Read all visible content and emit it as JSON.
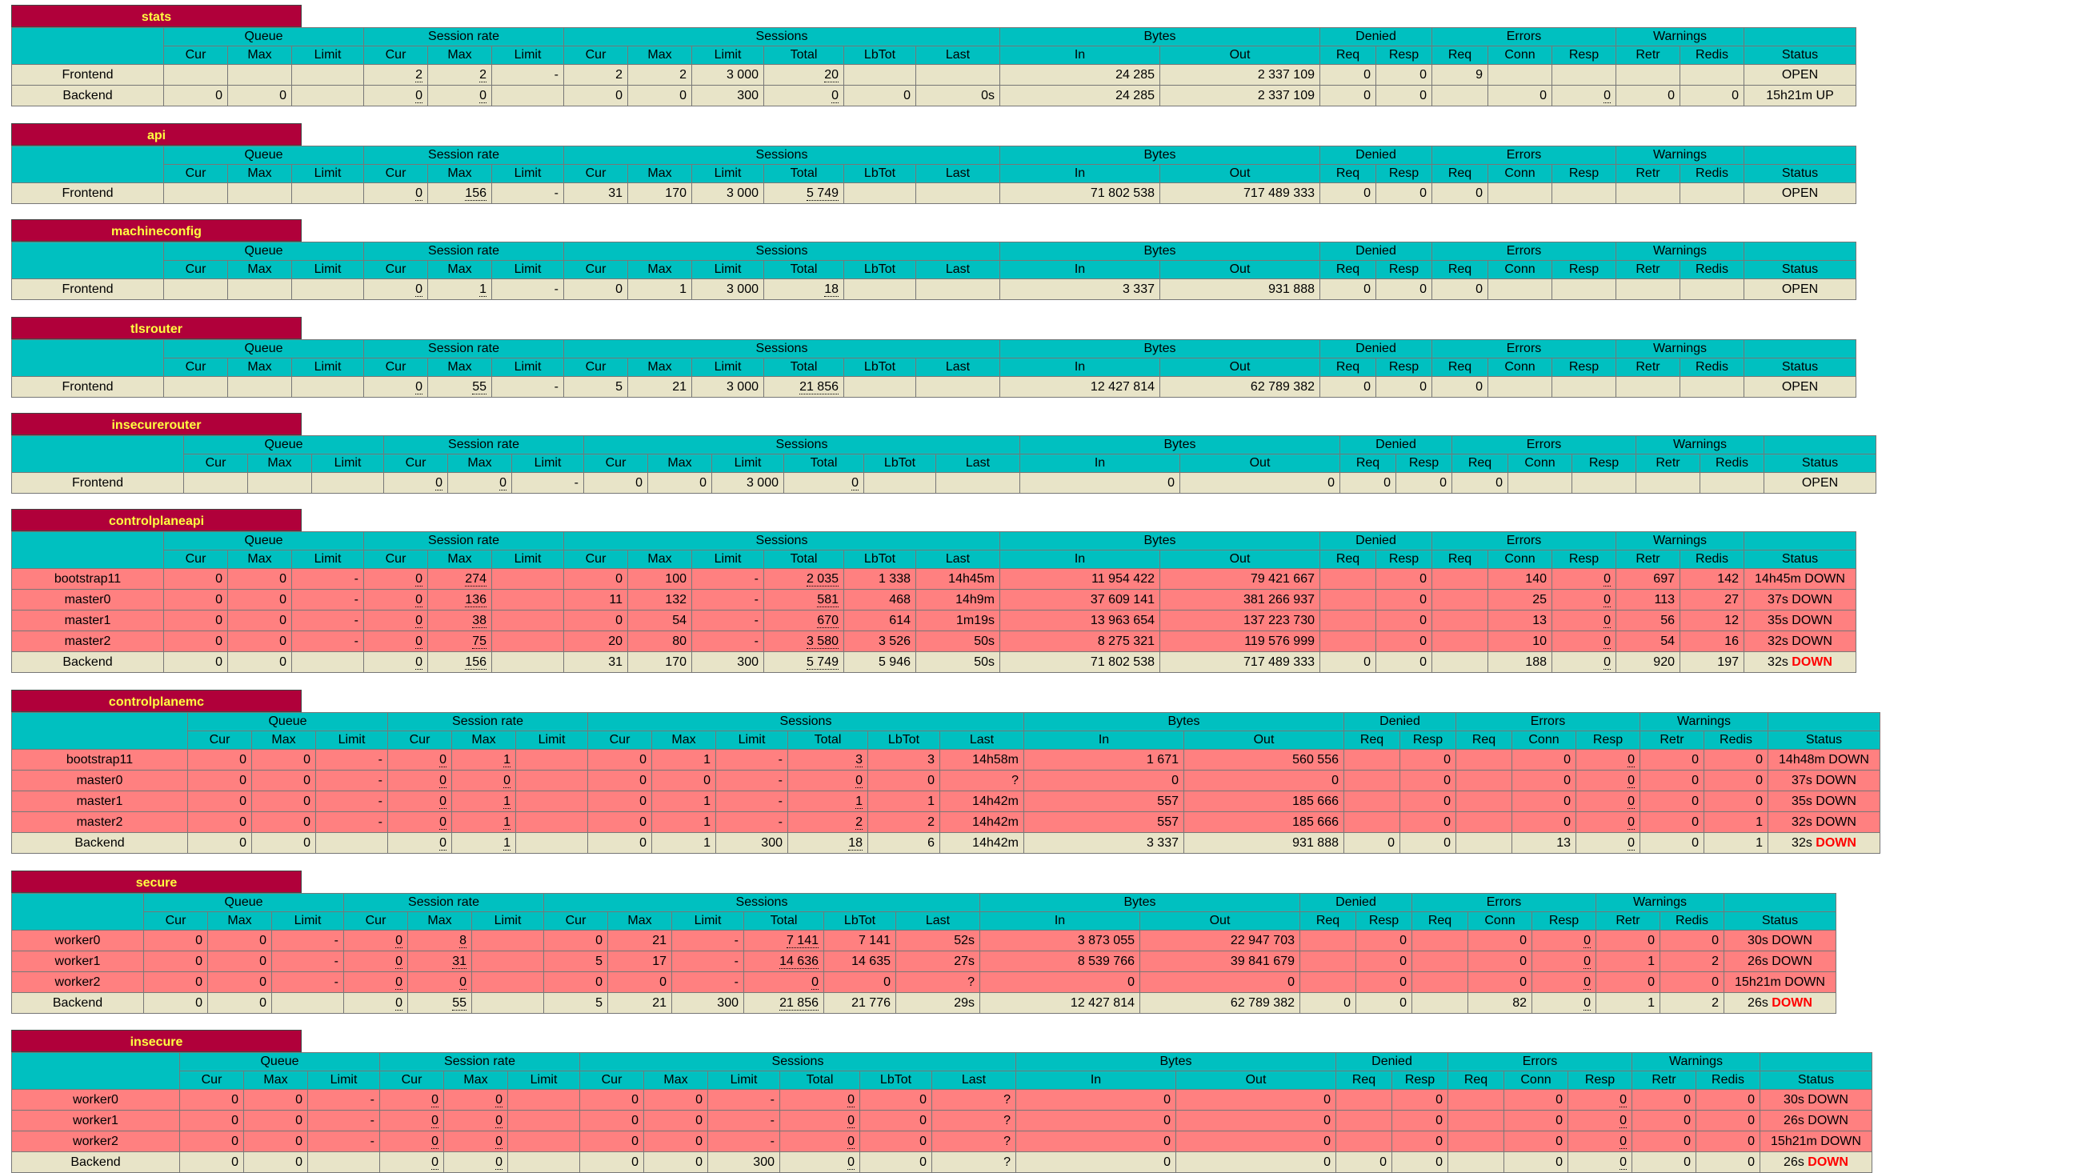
{
  "colors": {
    "header_bg": "#b0003a",
    "header_text": "#ffff40",
    "col_header_bg": "#00c0c0",
    "frontend_row": "#e8e4c8",
    "down_row": "#ff8080",
    "down_text": "#ff0000"
  },
  "groups": [
    "Queue",
    "Session rate",
    "Sessions",
    "Bytes",
    "Denied",
    "Errors",
    "Warnings"
  ],
  "sub_headers": {
    "queue": [
      "Cur",
      "Max",
      "Limit"
    ],
    "rate": [
      "Cur",
      "Max",
      "Limit"
    ],
    "sessions": [
      "Cur",
      "Max",
      "Limit",
      "Total",
      "LbTot",
      "Last"
    ],
    "bytes": [
      "In",
      "Out"
    ],
    "denied": [
      "Req",
      "Resp"
    ],
    "errors": [
      "Req",
      "Conn",
      "Resp"
    ],
    "warnings": [
      "Retr",
      "Redis"
    ],
    "status": "Status"
  },
  "proxies": [
    {
      "name": "stats",
      "rows": [
        {
          "kind": "frontend",
          "name": "Frontend",
          "cells": [
            "",
            "",
            "",
            "2",
            "2",
            "-",
            "2",
            "2",
            "3 000",
            "20",
            "",
            "",
            "24 285",
            "2 337 109",
            "0",
            "0",
            "9",
            "",
            "",
            "",
            ""
          ],
          "status": "OPEN"
        },
        {
          "kind": "backend",
          "name": "Backend",
          "cells": [
            "0",
            "0",
            "",
            "0",
            "0",
            "",
            "0",
            "0",
            "300",
            "0",
            "0",
            "0s",
            "24 285",
            "2 337 109",
            "0",
            "0",
            "",
            "0",
            "0",
            "0",
            "0"
          ],
          "status": "15h21m UP"
        }
      ]
    },
    {
      "name": "api",
      "rows": [
        {
          "kind": "frontend",
          "name": "Frontend",
          "cells": [
            "",
            "",
            "",
            "0",
            "156",
            "-",
            "31",
            "170",
            "3 000",
            "5 749",
            "",
            "",
            "71 802 538",
            "717 489 333",
            "0",
            "0",
            "0",
            "",
            "",
            "",
            ""
          ],
          "status": "OPEN"
        }
      ]
    },
    {
      "name": "machineconfig",
      "rows": [
        {
          "kind": "frontend",
          "name": "Frontend",
          "cells": [
            "",
            "",
            "",
            "0",
            "1",
            "-",
            "0",
            "1",
            "3 000",
            "18",
            "",
            "",
            "3 337",
            "931 888",
            "0",
            "0",
            "0",
            "",
            "",
            "",
            ""
          ],
          "status": "OPEN"
        }
      ]
    },
    {
      "name": "tlsrouter",
      "rows": [
        {
          "kind": "frontend",
          "name": "Frontend",
          "cells": [
            "",
            "",
            "",
            "0",
            "55",
            "-",
            "5",
            "21",
            "3 000",
            "21 856",
            "",
            "",
            "12 427 814",
            "62 789 382",
            "0",
            "0",
            "0",
            "",
            "",
            "",
            ""
          ],
          "status": "OPEN"
        }
      ]
    },
    {
      "name": "insecurerouter",
      "rows": [
        {
          "kind": "frontend",
          "name": "Frontend",
          "cells": [
            "",
            "",
            "",
            "0",
            "0",
            "-",
            "0",
            "0",
            "3 000",
            "0",
            "",
            "",
            "0",
            "0",
            "0",
            "0",
            "0",
            "",
            "",
            "",
            ""
          ],
          "status": "OPEN"
        }
      ]
    },
    {
      "name": "controlplaneapi",
      "rows": [
        {
          "kind": "down",
          "name": "bootstrap11",
          "cells": [
            "0",
            "0",
            "-",
            "0",
            "274",
            "",
            "0",
            "100",
            "-",
            "2 035",
            "1 338",
            "14h45m",
            "11 954 422",
            "79 421 667",
            "",
            "0",
            "",
            "140",
            "0",
            "697",
            "142"
          ],
          "status": "14h45m DOWN"
        },
        {
          "kind": "down",
          "name": "master0",
          "cells": [
            "0",
            "0",
            "-",
            "0",
            "136",
            "",
            "11",
            "132",
            "-",
            "581",
            "468",
            "14h9m",
            "37 609 141",
            "381 266 937",
            "",
            "0",
            "",
            "25",
            "0",
            "113",
            "27"
          ],
          "status": "37s DOWN"
        },
        {
          "kind": "down",
          "name": "master1",
          "cells": [
            "0",
            "0",
            "-",
            "0",
            "38",
            "",
            "0",
            "54",
            "-",
            "670",
            "614",
            "1m19s",
            "13 963 654",
            "137 223 730",
            "",
            "0",
            "",
            "13",
            "0",
            "56",
            "12"
          ],
          "status": "35s DOWN"
        },
        {
          "kind": "down",
          "name": "master2",
          "cells": [
            "0",
            "0",
            "-",
            "0",
            "75",
            "",
            "20",
            "80",
            "-",
            "3 580",
            "3 526",
            "50s",
            "8 275 321",
            "119 576 999",
            "",
            "0",
            "",
            "10",
            "0",
            "54",
            "16"
          ],
          "status": "32s DOWN"
        },
        {
          "kind": "backend",
          "name": "Backend",
          "cells": [
            "0",
            "0",
            "",
            "0",
            "156",
            "",
            "31",
            "170",
            "300",
            "5 749",
            "5 946",
            "50s",
            "71 802 538",
            "717 489 333",
            "0",
            "0",
            "",
            "188",
            "0",
            "920",
            "197"
          ],
          "status": "32s",
          "status_down": "DOWN"
        }
      ]
    },
    {
      "name": "controlplanemc",
      "rows": [
        {
          "kind": "down",
          "name": "bootstrap11",
          "cells": [
            "0",
            "0",
            "-",
            "0",
            "1",
            "",
            "0",
            "1",
            "-",
            "3",
            "3",
            "14h58m",
            "1 671",
            "560 556",
            "",
            "0",
            "",
            "0",
            "0",
            "0",
            "0"
          ],
          "status": "14h48m DOWN"
        },
        {
          "kind": "down",
          "name": "master0",
          "cells": [
            "0",
            "0",
            "-",
            "0",
            "0",
            "",
            "0",
            "0",
            "-",
            "0",
            "0",
            "?",
            "0",
            "0",
            "",
            "0",
            "",
            "0",
            "0",
            "0",
            "0"
          ],
          "status": "37s DOWN"
        },
        {
          "kind": "down",
          "name": "master1",
          "cells": [
            "0",
            "0",
            "-",
            "0",
            "1",
            "",
            "0",
            "1",
            "-",
            "1",
            "1",
            "14h42m",
            "557",
            "185 666",
            "",
            "0",
            "",
            "0",
            "0",
            "0",
            "0"
          ],
          "status": "35s DOWN"
        },
        {
          "kind": "down",
          "name": "master2",
          "cells": [
            "0",
            "0",
            "-",
            "0",
            "1",
            "",
            "0",
            "1",
            "-",
            "2",
            "2",
            "14h42m",
            "557",
            "185 666",
            "",
            "0",
            "",
            "0",
            "0",
            "0",
            "1"
          ],
          "status": "32s DOWN"
        },
        {
          "kind": "backend",
          "name": "Backend",
          "cells": [
            "0",
            "0",
            "",
            "0",
            "1",
            "",
            "0",
            "1",
            "300",
            "18",
            "6",
            "14h42m",
            "3 337",
            "931 888",
            "0",
            "0",
            "",
            "13",
            "0",
            "0",
            "1"
          ],
          "status": "32s",
          "status_down": "DOWN"
        }
      ]
    },
    {
      "name": "secure",
      "rows": [
        {
          "kind": "down",
          "name": "worker0",
          "cells": [
            "0",
            "0",
            "-",
            "0",
            "8",
            "",
            "0",
            "21",
            "-",
            "7 141",
            "7 141",
            "52s",
            "3 873 055",
            "22 947 703",
            "",
            "0",
            "",
            "0",
            "0",
            "0",
            "0"
          ],
          "status": "30s DOWN"
        },
        {
          "kind": "down",
          "name": "worker1",
          "cells": [
            "0",
            "0",
            "-",
            "0",
            "31",
            "",
            "5",
            "17",
            "-",
            "14 636",
            "14 635",
            "27s",
            "8 539 766",
            "39 841 679",
            "",
            "0",
            "",
            "0",
            "0",
            "1",
            "2"
          ],
          "status": "26s DOWN"
        },
        {
          "kind": "down",
          "name": "worker2",
          "cells": [
            "0",
            "0",
            "-",
            "0",
            "0",
            "",
            "0",
            "0",
            "-",
            "0",
            "0",
            "?",
            "0",
            "0",
            "",
            "0",
            "",
            "0",
            "0",
            "0",
            "0"
          ],
          "status": "15h21m DOWN"
        },
        {
          "kind": "backend",
          "name": "Backend",
          "cells": [
            "0",
            "0",
            "",
            "0",
            "55",
            "",
            "5",
            "21",
            "300",
            "21 856",
            "21 776",
            "29s",
            "12 427 814",
            "62 789 382",
            "0",
            "0",
            "",
            "82",
            "0",
            "1",
            "2"
          ],
          "status": "26s",
          "status_down": "DOWN"
        }
      ]
    },
    {
      "name": "insecure",
      "rows": [
        {
          "kind": "down",
          "name": "worker0",
          "cells": [
            "0",
            "0",
            "-",
            "0",
            "0",
            "",
            "0",
            "0",
            "-",
            "0",
            "0",
            "?",
            "0",
            "0",
            "",
            "0",
            "",
            "0",
            "0",
            "0",
            "0"
          ],
          "status": "30s DOWN"
        },
        {
          "kind": "down",
          "name": "worker1",
          "cells": [
            "0",
            "0",
            "-",
            "0",
            "0",
            "",
            "0",
            "0",
            "-",
            "0",
            "0",
            "?",
            "0",
            "0",
            "",
            "0",
            "",
            "0",
            "0",
            "0",
            "0"
          ],
          "status": "26s DOWN"
        },
        {
          "kind": "down",
          "name": "worker2",
          "cells": [
            "0",
            "0",
            "-",
            "0",
            "0",
            "",
            "0",
            "0",
            "-",
            "0",
            "0",
            "?",
            "0",
            "0",
            "",
            "0",
            "",
            "0",
            "0",
            "0",
            "0"
          ],
          "status": "15h21m DOWN"
        },
        {
          "kind": "backend",
          "name": "Backend",
          "cells": [
            "0",
            "0",
            "",
            "0",
            "0",
            "",
            "0",
            "0",
            "300",
            "0",
            "0",
            "?",
            "0",
            "0",
            "0",
            "0",
            "",
            "0",
            "0",
            "0",
            "0"
          ],
          "status": "26s",
          "status_down": "DOWN"
        }
      ]
    }
  ]
}
